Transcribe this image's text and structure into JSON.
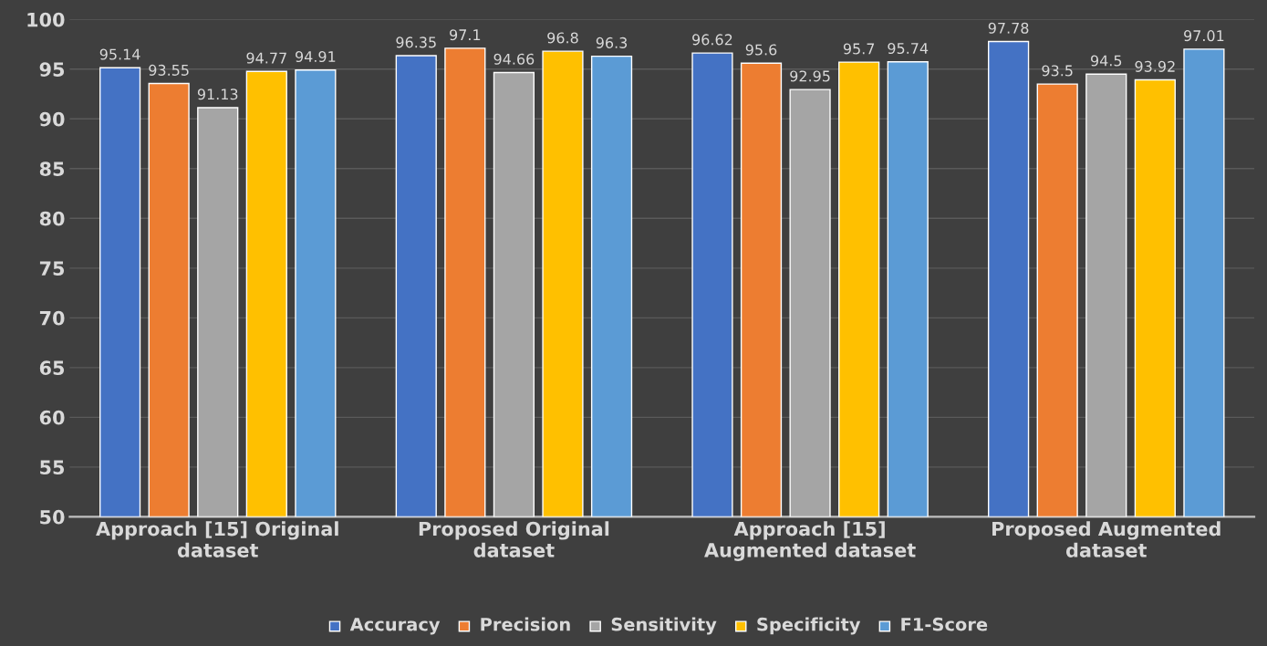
{
  "chart_data": {
    "type": "bar",
    "categories": [
      "Approach [15] Original\ndataset",
      "Proposed Original\ndataset",
      "Approach [15]\nAugmented dataset",
      "Proposed Augmented\ndataset"
    ],
    "series": [
      {
        "name": "Accuracy",
        "color": "#4472c4",
        "values": [
          95.14,
          96.35,
          96.62,
          97.78
        ]
      },
      {
        "name": "Precision",
        "color": "#ed7d31",
        "values": [
          93.55,
          97.1,
          95.6,
          93.5
        ]
      },
      {
        "name": "Sensitivity",
        "color": "#a5a5a5",
        "values": [
          91.13,
          94.66,
          92.95,
          94.5
        ]
      },
      {
        "name": "Specificity",
        "color": "#ffc000",
        "values": [
          94.77,
          96.8,
          95.7,
          93.92
        ]
      },
      {
        "name": "F1-Score",
        "color": "#5b9bd5",
        "values": [
          94.91,
          96.3,
          95.74,
          97.01
        ]
      }
    ],
    "ylim": [
      50,
      100
    ],
    "yticks": [
      50,
      55,
      60,
      65,
      70,
      75,
      80,
      85,
      90,
      95,
      100
    ],
    "grid": "y",
    "legend": "bottom",
    "data_labels": true
  }
}
